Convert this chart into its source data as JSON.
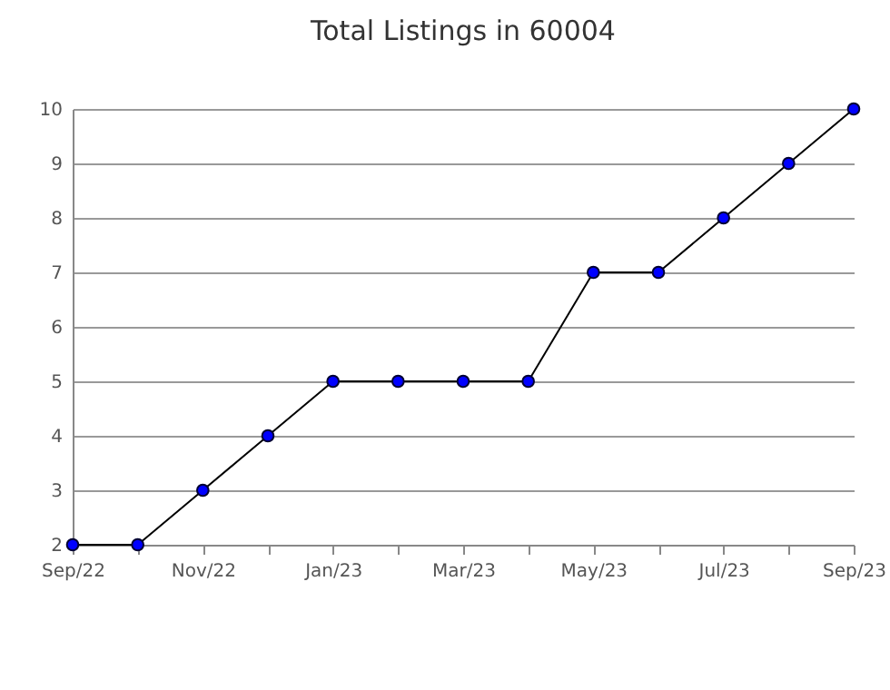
{
  "chart_data": {
    "type": "line",
    "title": "Total Listings in 60004",
    "categories": [
      "Sep/22",
      null,
      "Nov/22",
      null,
      "Jan/23",
      null,
      "Mar/23",
      null,
      "May/23",
      null,
      "Jul/23",
      null,
      "Sep/23"
    ],
    "series": [
      {
        "color": "#0000ff",
        "values": [
          2,
          2,
          3,
          4,
          5,
          5,
          5,
          5,
          7,
          7,
          8,
          9,
          10
        ]
      }
    ],
    "ylim": [
      2,
      10
    ],
    "yticks": [
      2,
      3,
      4,
      5,
      6,
      7,
      8,
      9,
      10
    ],
    "grid": "y",
    "marker": "circle",
    "line_style": "solid"
  }
}
